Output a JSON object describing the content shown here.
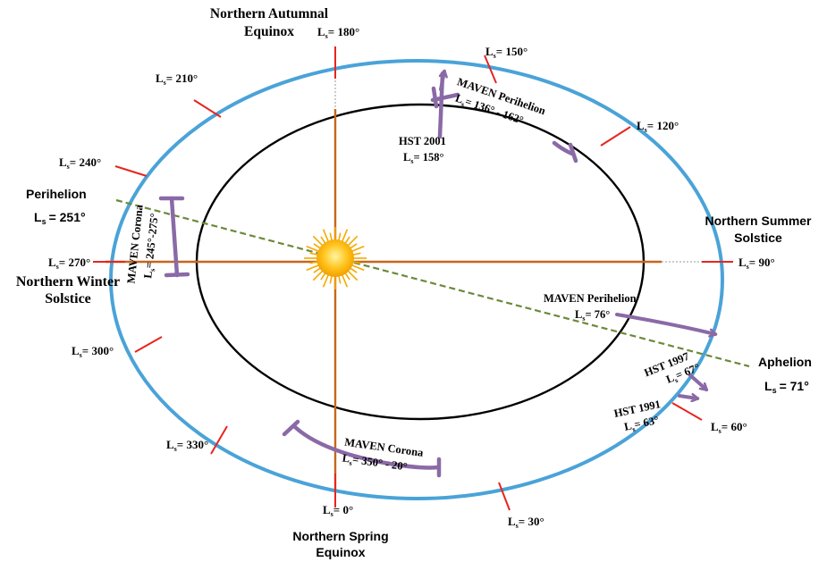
{
  "colors": {
    "mars_orbit": "#4aa3d8",
    "earth_orbit": "#000000",
    "axes": "#c8651b",
    "tick": "#e6251f",
    "apsides_line": "#6b8a3a",
    "marker": "#8a6aa6",
    "sun_core": "#ffc21a",
    "sun_rays": "#f5a800"
  },
  "labels": {
    "autumnal_equinox": [
      "Northern Autumnal",
      "Equinox"
    ],
    "spring_equinox": [
      "Northern Spring",
      "Equinox"
    ],
    "summer_solstice": [
      "Northern Summer",
      "Solstice"
    ],
    "winter_solstice": [
      "Northern Winter",
      "Solstice"
    ],
    "perihelion": {
      "title": "Perihelion",
      "value": "= 251°"
    },
    "aphelion": {
      "title": "Aphelion",
      "value": "= 71°"
    }
  },
  "ls_ticks": [
    {
      "id": "ls-180",
      "value": "= 180°"
    },
    {
      "id": "ls-150",
      "value": "= 150°"
    },
    {
      "id": "ls-120",
      "value": "= 120°"
    },
    {
      "id": "ls-90",
      "value": "= 90°"
    },
    {
      "id": "ls-60",
      "value": "= 60°"
    },
    {
      "id": "ls-30",
      "value": "= 30°"
    },
    {
      "id": "ls-0",
      "value": "= 0°"
    },
    {
      "id": "ls-330",
      "value": "= 330°"
    },
    {
      "id": "ls-300",
      "value": "= 300°"
    },
    {
      "id": "ls-270",
      "value": "= 270°"
    },
    {
      "id": "ls-240",
      "value": "= 240°"
    },
    {
      "id": "ls-210",
      "value": "= 210°"
    }
  ],
  "annotations": {
    "hst_2001": {
      "title": "HST 2001",
      "value": "= 158°"
    },
    "hst_1997": {
      "title": "HST 1997",
      "value": "= 67°"
    },
    "hst_1991": {
      "title": "HST 1991",
      "value": "= 63°"
    },
    "maven_perihelion_top": {
      "title": "MAVEN Perihelion",
      "value": "= 136° - 162°"
    },
    "maven_perihelion_right": {
      "title": "MAVEN Perihelion",
      "value": "= 76°"
    },
    "maven_corona_bottom": {
      "title": "MAVEN Corona",
      "value": "= 350° - 20°"
    },
    "maven_corona_left": {
      "title": "MAVEN Corona",
      "value": "= 245°-275°"
    }
  },
  "ls_symbol": {
    "base": "L",
    "sub": "s"
  }
}
